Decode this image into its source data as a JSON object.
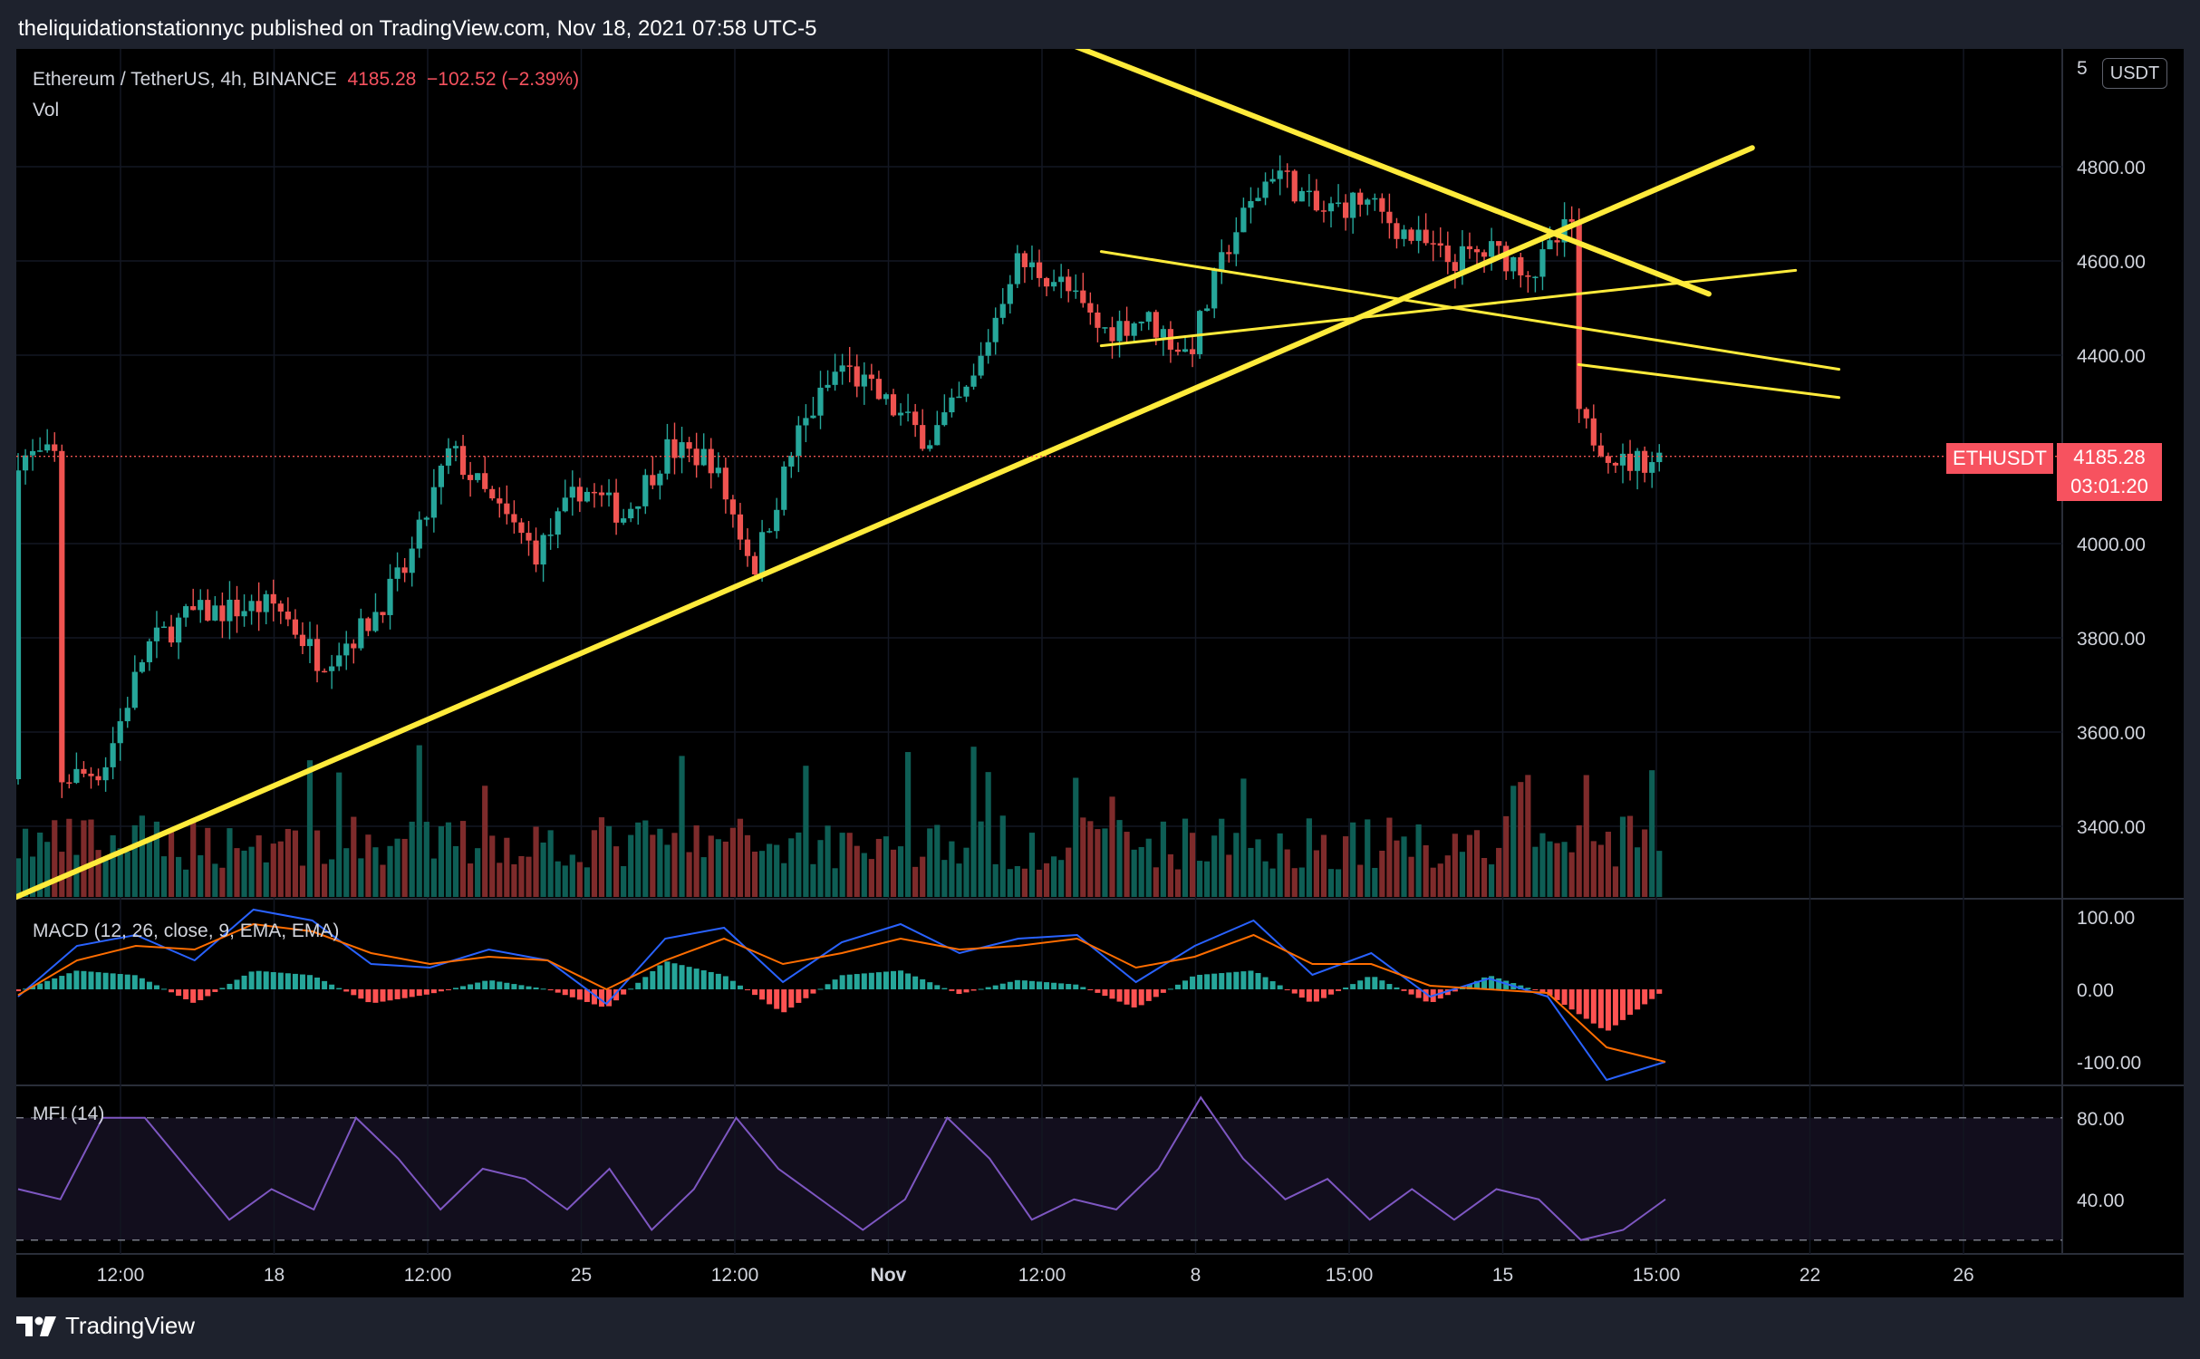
{
  "header": {
    "attribution": "theliquidationstationnyc published on TradingView.com, Nov 18, 2021 07:58 UTC-5"
  },
  "legend": {
    "symbol": "Ethereum / TetherUS, 4h, BINANCE",
    "last_price": "4185.28",
    "change": "−102.52 (−2.39%)",
    "volume_label": "Vol"
  },
  "currency_button": "USDT",
  "price_badge": {
    "ticker": "ETHUSDT",
    "price": "4185.28",
    "countdown": "03:01:20"
  },
  "macd": {
    "label": "MACD (12, 26, close, 9, EMA, EMA)"
  },
  "mfi": {
    "label": "MFI (14)"
  },
  "footer": {
    "brand": "TradingView"
  },
  "colors": {
    "up": "#26a69a",
    "down": "#ef5350",
    "trendline": "#ffeb3b",
    "macd_line": "#2962ff",
    "signal_line": "#ff6d00",
    "mfi_line": "#7e57c2",
    "background": "#000000"
  },
  "chart_data": [
    {
      "type": "candlestick",
      "title": "Ethereum / TetherUS, 4h, BINANCE",
      "price_axis_ticks": [
        "4800.00",
        "4600.00",
        "4400.00",
        "4000.00",
        "3800.00",
        "3600.00",
        "3400.00"
      ],
      "time_axis_ticks": [
        "12:00",
        "18",
        "12:00",
        "25",
        "12:00",
        "Nov",
        "12:00",
        "8",
        "15:00",
        "15",
        "15:00",
        "22",
        "26"
      ],
      "ylim": [
        3250,
        5050
      ],
      "time_range": [
        "2021-10-11",
        "2021-11-18"
      ],
      "interval": "4h",
      "last_price": 4185.28,
      "price_path": [
        [
          "2021-10-12",
          3500
        ],
        [
          "2021-10-13",
          3520
        ],
        [
          "2021-10-14",
          3780
        ],
        [
          "2021-10-15",
          3850
        ],
        [
          "2021-10-16",
          3860
        ],
        [
          "2021-10-17",
          3870
        ],
        [
          "2021-10-18",
          3750
        ],
        [
          "2021-10-19",
          3820
        ],
        [
          "2021-10-20",
          3950
        ],
        [
          "2021-10-21",
          4200
        ],
        [
          "2021-10-22",
          4080
        ],
        [
          "2021-10-23",
          3980
        ],
        [
          "2021-10-24",
          4120
        ],
        [
          "2021-10-25",
          4060
        ],
        [
          "2021-10-26",
          4200
        ],
        [
          "2021-10-27",
          4180
        ],
        [
          "2021-10-28",
          3950
        ],
        [
          "2021-10-29",
          4230
        ],
        [
          "2021-10-30",
          4380
        ],
        [
          "2021-10-31",
          4300
        ],
        [
          "2021-11-01",
          4220
        ],
        [
          "2021-11-02",
          4330
        ],
        [
          "2021-11-03",
          4600
        ],
        [
          "2021-11-04",
          4560
        ],
        [
          "2021-11-05",
          4450
        ],
        [
          "2021-11-06",
          4480
        ],
        [
          "2021-11-07",
          4400
        ],
        [
          "2021-11-08",
          4650
        ],
        [
          "2021-11-09",
          4800
        ],
        [
          "2021-11-10",
          4700
        ],
        [
          "2021-11-11",
          4730
        ],
        [
          "2021-11-12",
          4660
        ],
        [
          "2021-11-13",
          4600
        ],
        [
          "2021-11-14",
          4620
        ],
        [
          "2021-11-15",
          4580
        ],
        [
          "2021-11-16",
          4700
        ],
        [
          "2021-11-16",
          4260
        ],
        [
          "2021-11-17",
          4170
        ],
        [
          "2021-11-18",
          4185.28
        ]
      ],
      "trendlines": [
        {
          "from": [
            "2021-10-11",
            3250
          ],
          "to": [
            "2021-11-20",
            4840
          ]
        },
        {
          "from": [
            "2021-11-04",
            5070
          ],
          "to": [
            "2021-11-19",
            4530
          ]
        },
        {
          "from": [
            "2021-11-05",
            4620
          ],
          "to": [
            "2021-11-22",
            4370
          ]
        },
        {
          "from": [
            "2021-11-05",
            4420
          ],
          "to": [
            "2021-11-21",
            4580
          ]
        },
        {
          "from": [
            "2021-11-16",
            4380
          ],
          "to": [
            "2021-11-22",
            4310
          ]
        }
      ]
    },
    {
      "type": "line",
      "title": "MACD (12, 26, close, 9, EMA, EMA)",
      "y_axis_ticks": [
        "100.00",
        "0.00",
        "-100.00"
      ],
      "ylim": [
        -130,
        120
      ],
      "series": [
        {
          "values": [
            -10,
            60,
            75,
            40,
            110,
            95,
            35,
            30,
            55,
            40,
            -20,
            70,
            85,
            10,
            65,
            90,
            50,
            70,
            75,
            10,
            60,
            95,
            20,
            50,
            -10,
            15,
            -10,
            -125,
            -100
          ]
        },
        {
          "values": [
            -8,
            40,
            60,
            55,
            90,
            80,
            50,
            35,
            45,
            40,
            0,
            40,
            70,
            35,
            50,
            70,
            55,
            60,
            70,
            30,
            45,
            75,
            35,
            35,
            5,
            0,
            -5,
            -80,
            -100
          ]
        }
      ]
    },
    {
      "type": "line",
      "title": "MFI (14)",
      "y_axis_ticks": [
        "80.00",
        "40.00"
      ],
      "ylim": [
        15,
        95
      ],
      "series": [
        {
          "values": [
            45,
            40,
            80,
            80,
            55,
            30,
            45,
            35,
            80,
            60,
            35,
            55,
            50,
            35,
            55,
            25,
            45,
            80,
            55,
            40,
            25,
            40,
            80,
            60,
            30,
            40,
            35,
            55,
            90,
            60,
            40,
            50,
            30,
            45,
            30,
            45,
            40,
            20,
            25,
            40
          ]
        }
      ]
    }
  ]
}
